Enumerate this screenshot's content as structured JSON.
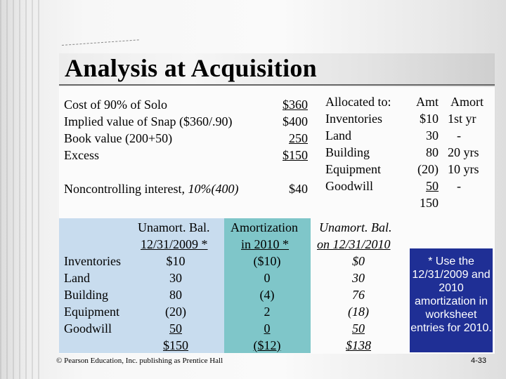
{
  "title": "Analysis at Acquisition",
  "analysis": {
    "rows": [
      {
        "label": "Cost of 90% of Solo",
        "value": "$360"
      },
      {
        "label": "Implied value of Snap ($360/.90)",
        "value": "$400"
      },
      {
        "label": "Book value (200+50)",
        "value": "250"
      },
      {
        "label": "Excess",
        "value": "$150"
      }
    ],
    "nci_label": "Noncontrolling interest, ",
    "nci_label_italic": "10%(400)",
    "nci_value": "$40"
  },
  "allocation": {
    "headers": {
      "label": "Allocated to:",
      "amt": "Amt",
      "amort": "Amort"
    },
    "rows": [
      {
        "label": "Inventories",
        "amt": "$10",
        "amort": "1st yr"
      },
      {
        "label": "Land",
        "amt": "30",
        "amort": "-"
      },
      {
        "label": "Building",
        "amt": "80",
        "amort": "20 yrs"
      },
      {
        "label": "Equipment",
        "amt": "(20)",
        "amort": "10 yrs"
      },
      {
        "label": "Goodwill",
        "amt": "50",
        "amort": "-"
      }
    ],
    "total": "150"
  },
  "schedule": {
    "col1_header": [
      "Unamort. Bal.",
      "12/31/2009 *"
    ],
    "col2_header": [
      "Amortization",
      "in 2010 *"
    ],
    "col3_header": [
      "Unamort. Bal.",
      "on 12/31/2010"
    ],
    "rows": [
      {
        "label": "Inventories",
        "bal2009": "$10",
        "amort2010": "($10)",
        "bal2010": "$0"
      },
      {
        "label": "Land",
        "bal2009": "30",
        "amort2010": "0",
        "bal2010": "30"
      },
      {
        "label": "Building",
        "bal2009": "80",
        "amort2010": "(4)",
        "bal2010": "76"
      },
      {
        "label": "Equipment",
        "bal2009": "(20)",
        "amort2010": "2",
        "bal2010": "(18)"
      },
      {
        "label": "Goodwill",
        "bal2009": "50",
        "amort2010": "0",
        "bal2010": "50"
      }
    ],
    "totals": {
      "bal2009": "$150",
      "amort2010": "($12)",
      "bal2010": "$138"
    }
  },
  "callout": "* Use the 12/31/2009 and 2010 amortization in worksheet entries for 2010.",
  "footer": "© Pearson Education, Inc. publishing as Prentice Hall",
  "page_number": "4-33"
}
